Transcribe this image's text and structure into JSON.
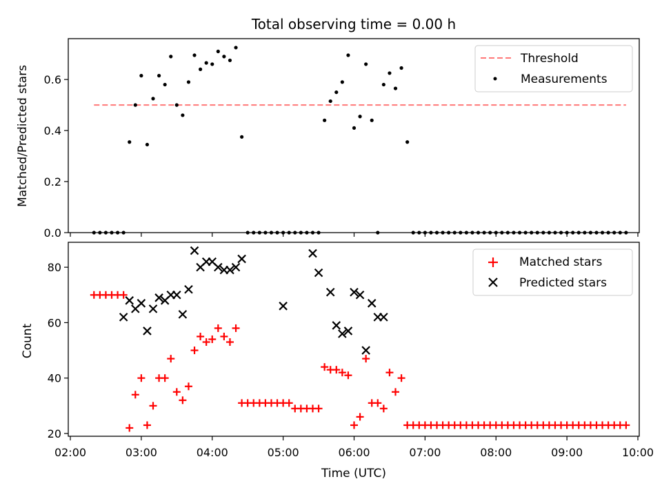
{
  "figure_title": "Total observing time = 0.00 h",
  "chart_data": [
    {
      "type": "scatter",
      "ylabel": "Matched/Predicted stars",
      "xlabel": "",
      "xlim": [
        "02:00",
        "10:00"
      ],
      "ylim": [
        0,
        0.76
      ],
      "yticks": [
        "0.0",
        "0.2",
        "0.4",
        "0.6"
      ],
      "legend_position": "top-right",
      "threshold": {
        "name": "Threshold",
        "value": 0.5,
        "x_start": "02:20",
        "x_end": "09:50",
        "color": "#ff7777",
        "style": "dashed"
      },
      "series": [
        {
          "name": "Measurements",
          "color": "#000000",
          "marker": "dot",
          "x": [
            "02:20",
            "02:25",
            "02:30",
            "02:35",
            "02:40",
            "02:45",
            "02:50",
            "02:55",
            "03:00",
            "03:05",
            "03:10",
            "03:15",
            "03:20",
            "03:25",
            "03:30",
            "03:35",
            "03:40",
            "03:45",
            "03:50",
            "03:55",
            "04:00",
            "04:05",
            "04:10",
            "04:15",
            "04:20",
            "04:25",
            "04:30",
            "04:35",
            "04:40",
            "04:45",
            "04:50",
            "04:55",
            "05:00",
            "05:05",
            "05:10",
            "05:15",
            "05:20",
            "05:25",
            "05:30",
            "05:35",
            "05:40",
            "05:45",
            "05:50",
            "05:55",
            "06:00",
            "06:05",
            "06:10",
            "06:15",
            "06:20",
            "06:25",
            "06:30",
            "06:35",
            "06:40",
            "06:45",
            "06:50",
            "06:55",
            "07:00",
            "07:05",
            "07:10",
            "07:15",
            "07:20",
            "07:25",
            "07:30",
            "07:35",
            "07:40",
            "07:45",
            "07:50",
            "07:55",
            "08:00",
            "08:05",
            "08:10",
            "08:15",
            "08:20",
            "08:25",
            "08:30",
            "08:35",
            "08:40",
            "08:45",
            "08:50",
            "08:55",
            "09:00",
            "09:05",
            "09:10",
            "09:15",
            "09:20",
            "09:25",
            "09:30",
            "09:35",
            "09:40",
            "09:45",
            "09:50"
          ],
          "y": [
            0,
            0,
            0,
            0,
            0,
            0,
            0.355,
            0.5,
            0.615,
            0.345,
            0.525,
            0.615,
            0.58,
            0.69,
            0.5,
            0.46,
            0.59,
            0.695,
            0.64,
            0.665,
            0.66,
            0.71,
            0.69,
            0.675,
            0.725,
            0.375,
            0,
            0,
            0,
            0,
            0,
            0,
            0,
            0,
            0,
            0,
            0,
            0,
            0,
            0.44,
            0.515,
            0.55,
            0.59,
            0.695,
            0.41,
            0.455,
            0.66,
            0.44,
            0,
            0.58,
            0.625,
            0.565,
            0.645,
            0.355,
            0,
            0,
            0,
            0,
            0,
            0,
            0,
            0,
            0,
            0,
            0,
            0,
            0,
            0,
            0,
            0,
            0,
            0,
            0,
            0,
            0,
            0,
            0,
            0,
            0,
            0,
            0,
            0,
            0,
            0,
            0,
            0,
            0,
            0,
            0,
            0,
            0
          ]
        }
      ]
    },
    {
      "type": "scatter",
      "ylabel": "Count",
      "xlabel": "Time (UTC)",
      "xlim": [
        "02:00",
        "10:00"
      ],
      "ylim": [
        19,
        89
      ],
      "yticks": [
        "20",
        "40",
        "60",
        "80"
      ],
      "xticks": [
        "02:00",
        "03:00",
        "04:00",
        "05:00",
        "06:00",
        "07:00",
        "08:00",
        "09:00",
        "10:00"
      ],
      "legend_position": "top-right",
      "series": [
        {
          "name": "Matched stars",
          "color": "#ff0000",
          "marker": "plus",
          "x": [
            "02:20",
            "02:25",
            "02:30",
            "02:35",
            "02:40",
            "02:45",
            "02:50",
            "02:55",
            "03:00",
            "03:05",
            "03:10",
            "03:15",
            "03:20",
            "03:25",
            "03:30",
            "03:35",
            "03:40",
            "03:45",
            "03:50",
            "03:55",
            "04:00",
            "04:05",
            "04:10",
            "04:15",
            "04:20",
            "04:25",
            "04:30",
            "04:35",
            "04:40",
            "04:45",
            "04:50",
            "04:55",
            "05:00",
            "05:05",
            "05:10",
            "05:15",
            "05:20",
            "05:25",
            "05:30",
            "05:35",
            "05:40",
            "05:45",
            "05:50",
            "05:55",
            "06:00",
            "06:05",
            "06:10",
            "06:15",
            "06:20",
            "06:25",
            "06:30",
            "06:35",
            "06:40",
            "06:45",
            "06:50",
            "06:55",
            "07:00",
            "07:05",
            "07:10",
            "07:15",
            "07:20",
            "07:25",
            "07:30",
            "07:35",
            "07:40",
            "07:45",
            "07:50",
            "07:55",
            "08:00",
            "08:05",
            "08:10",
            "08:15",
            "08:20",
            "08:25",
            "08:30",
            "08:35",
            "08:40",
            "08:45",
            "08:50",
            "08:55",
            "09:00",
            "09:05",
            "09:10",
            "09:15",
            "09:20",
            "09:25",
            "09:30",
            "09:35",
            "09:40",
            "09:45",
            "09:50"
          ],
          "y": [
            70,
            70,
            70,
            70,
            70,
            70,
            22,
            34,
            40,
            23,
            30,
            40,
            40,
            47,
            35,
            32,
            37,
            50,
            55,
            53,
            54,
            58,
            55,
            53,
            58,
            31,
            31,
            31,
            31,
            31,
            31,
            31,
            31,
            31,
            29,
            29,
            29,
            29,
            29,
            44,
            43,
            43,
            42,
            41,
            23,
            26,
            47,
            31,
            31,
            29,
            42,
            35,
            40,
            23,
            23,
            23,
            23,
            23,
            23,
            23,
            23,
            23,
            23,
            23,
            23,
            23,
            23,
            23,
            23,
            23,
            23,
            23,
            23,
            23,
            23,
            23,
            23,
            23,
            23,
            23,
            23,
            23,
            23,
            23,
            23,
            23,
            23,
            23,
            23,
            23,
            23
          ]
        },
        {
          "name": "Predicted stars",
          "color": "#000000",
          "marker": "x",
          "x": [
            "02:45",
            "02:50",
            "02:55",
            "03:00",
            "03:05",
            "03:10",
            "03:15",
            "03:20",
            "03:25",
            "03:30",
            "03:35",
            "03:40",
            "03:45",
            "03:50",
            "03:55",
            "04:00",
            "04:05",
            "04:10",
            "04:15",
            "04:20",
            "04:25",
            "04:30",
            "05:00",
            "05:05",
            "05:10",
            "05:15",
            "05:20",
            "05:25",
            "05:30",
            "05:35",
            "05:40",
            "05:45",
            "05:50",
            "05:55",
            "06:00",
            "06:05",
            "06:10",
            "06:15",
            "06:20",
            "06:25"
          ],
          "y": [
            62,
            68,
            65,
            67,
            57,
            65,
            69,
            68,
            70,
            70,
            63,
            72,
            86,
            80,
            82,
            82,
            80,
            79,
            79,
            80,
            83,
            null,
            66,
            null,
            null,
            null,
            null,
            85,
            78,
            null,
            71,
            59,
            56,
            57,
            71,
            70,
            50,
            67,
            62,
            62
          ]
        }
      ]
    }
  ]
}
